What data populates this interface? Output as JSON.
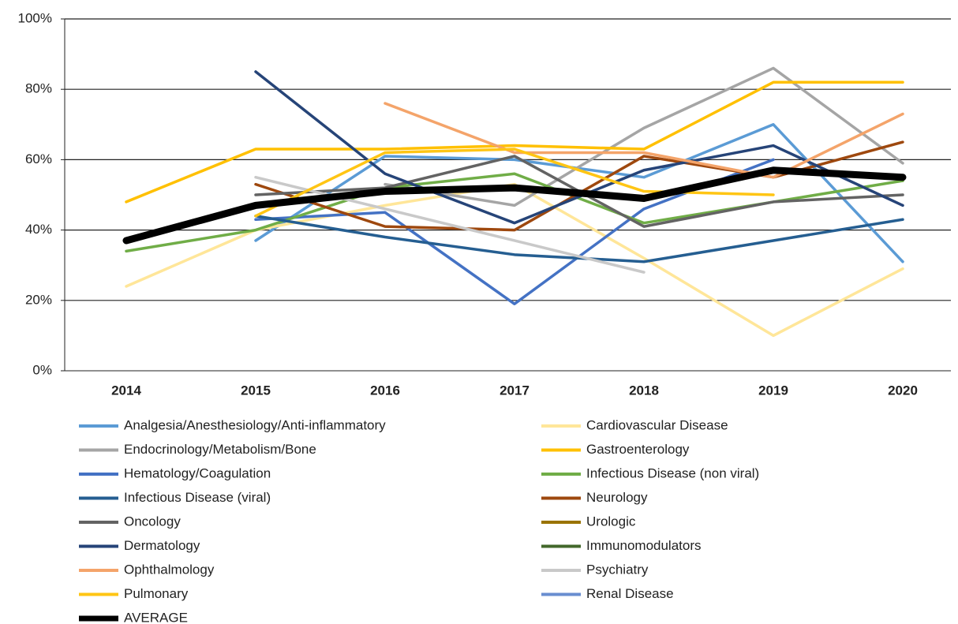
{
  "chart_data": {
    "type": "line",
    "categories": [
      "2014",
      "2015",
      "2016",
      "2017",
      "2018",
      "2019",
      "2020"
    ],
    "ylim": [
      0,
      100
    ],
    "yticks": [
      {
        "value": 0,
        "label": "0%"
      },
      {
        "value": 20,
        "label": "20%"
      },
      {
        "value": 40,
        "label": "40%"
      },
      {
        "value": 60,
        "label": "60%"
      },
      {
        "value": 80,
        "label": "80%"
      },
      {
        "value": 100,
        "label": "100%"
      }
    ],
    "grid": true,
    "legend": "bottom",
    "series": [
      {
        "name": "Analgesia/Anesthesiology/Anti-inflammatory",
        "color": "#5b9bd5",
        "values": [
          null,
          37,
          61,
          60,
          55,
          70,
          31
        ]
      },
      {
        "name": "Cardiovascular Disease",
        "color": "#ffe699",
        "values": [
          24,
          40,
          47,
          53,
          32,
          10,
          29
        ]
      },
      {
        "name": "Endocrinology/Metabolism/Bone",
        "color": "#a5a5a5",
        "values": [
          null,
          null,
          53,
          47,
          69,
          86,
          59
        ]
      },
      {
        "name": "Gastroenterology",
        "color": "#ffc000",
        "values": [
          48,
          63,
          63,
          64,
          63,
          82,
          82
        ]
      },
      {
        "name": "Hematology/Coagulation",
        "color": "#4472c4",
        "values": [
          null,
          43,
          45,
          19,
          46,
          60,
          null
        ]
      },
      {
        "name": "Infectious Disease (non viral)",
        "color": "#70ad47",
        "values": [
          34,
          40,
          52,
          56,
          42,
          48,
          54
        ]
      },
      {
        "name": "Infectious Disease (viral)",
        "color": "#255e91",
        "values": [
          null,
          44,
          38,
          33,
          31,
          37,
          43
        ]
      },
      {
        "name": "Neurology",
        "color": "#9e480e",
        "values": [
          null,
          53,
          41,
          40,
          61,
          55,
          65
        ]
      },
      {
        "name": "Oncology",
        "color": "#636363",
        "values": [
          null,
          50,
          52,
          61,
          41,
          48,
          50
        ]
      },
      {
        "name": "Urologic",
        "color": "#997300",
        "values": [
          null,
          null,
          null,
          null,
          null,
          null,
          null
        ]
      },
      {
        "name": "Dermatology",
        "color": "#264478",
        "values": [
          null,
          85,
          56,
          42,
          57,
          64,
          47
        ]
      },
      {
        "name": "Immunomodulators",
        "color": "#43682b",
        "values": [
          null,
          null,
          null,
          null,
          null,
          null,
          null
        ]
      },
      {
        "name": "Ophthalmology",
        "color": "#f4a46a",
        "values": [
          null,
          null,
          76,
          62,
          62,
          55,
          73
        ]
      },
      {
        "name": "Psychiatry",
        "color": "#c9c9c9",
        "values": [
          null,
          55,
          46,
          37,
          28,
          null,
          null
        ]
      },
      {
        "name": "Pulmonary",
        "color": "#ffc514",
        "values": [
          null,
          44,
          62,
          63,
          51,
          50,
          null
        ]
      },
      {
        "name": "Renal Disease",
        "color": "#698ed0",
        "values": [
          null,
          null,
          null,
          null,
          null,
          null,
          null
        ]
      },
      {
        "name": "AVERAGE",
        "color": "#000000",
        "values": [
          37,
          47,
          51,
          52,
          49,
          57,
          55
        ]
      }
    ]
  }
}
